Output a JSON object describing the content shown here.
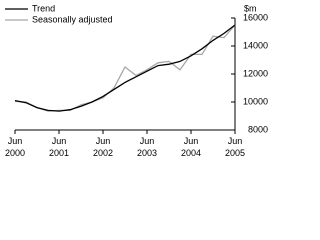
{
  "chart_data": {
    "type": "line",
    "y_label": "$m",
    "categories": [
      "Jun 2000",
      null,
      null,
      null,
      "Jun 2001",
      null,
      null,
      null,
      "Jun 2002",
      null,
      null,
      null,
      "Jun 2003",
      null,
      null,
      null,
      "Jun 2004",
      null,
      null,
      null,
      "Jun 2005"
    ],
    "series": [
      {
        "name": "Trend",
        "color": "#000000",
        "values": [
          10100,
          9950,
          9600,
          9400,
          9350,
          9450,
          9700,
          10000,
          10400,
          10900,
          11400,
          11800,
          12200,
          12600,
          12700,
          12900,
          13300,
          13800,
          14400,
          14900,
          15500
        ]
      },
      {
        "name": "Seasonally adjusted",
        "color": "#a6a6a6",
        "values": [
          10050,
          10000,
          9600,
          9350,
          9400,
          9400,
          9800,
          10000,
          10300,
          11000,
          12500,
          11900,
          12300,
          12800,
          12900,
          12300,
          13400,
          13400,
          14700,
          14600,
          15500
        ]
      }
    ],
    "ylim": [
      8000,
      16000
    ],
    "yticks": [
      8000,
      10000,
      12000,
      14000,
      16000
    ]
  }
}
